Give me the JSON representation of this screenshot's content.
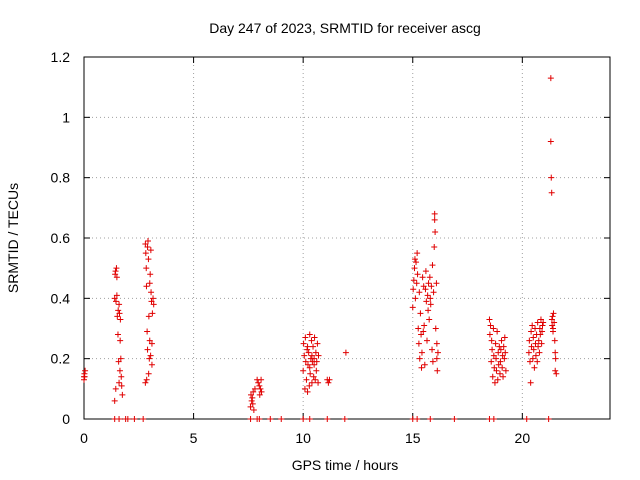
{
  "chart_data": {
    "type": "scatter",
    "title": "Day 247 of 2023, SRMTID for receiver ascg",
    "xlabel": "GPS time / hours",
    "ylabel": "SRMTID / TECUs",
    "xlim": [
      0,
      24
    ],
    "ylim": [
      0,
      1.2
    ],
    "xticks": [
      0,
      5,
      10,
      15,
      20
    ],
    "yticks": [
      0,
      0.2,
      0.4,
      0.6,
      0.8,
      1,
      1.2
    ],
    "ytick_labels": [
      "0",
      "0.2",
      "0.4",
      "0.6",
      "0.8",
      "1",
      "1.2"
    ],
    "grid": true,
    "marker": "+",
    "series": [
      {
        "name": "ascg",
        "color": "#e00000",
        "x": [
          0.0,
          0.0,
          0.02,
          0.03,
          0.05,
          1.4,
          1.4,
          1.42,
          1.44,
          1.45,
          1.46,
          1.48,
          1.5,
          1.5,
          1.52,
          1.55,
          1.56,
          1.58,
          1.6,
          1.6,
          1.62,
          1.64,
          1.65,
          1.66,
          1.68,
          1.7,
          1.72,
          1.75,
          2.8,
          2.8,
          2.82,
          2.84,
          2.85,
          2.86,
          2.88,
          2.9,
          2.9,
          2.92,
          2.94,
          2.95,
          2.96,
          2.98,
          3.0,
          3.0,
          3.02,
          3.04,
          3.05,
          3.06,
          3.08,
          3.1,
          3.1,
          3.12,
          3.15,
          3.18,
          7.6,
          7.62,
          7.65,
          7.68,
          7.7,
          7.72,
          7.75,
          7.8,
          7.9,
          7.95,
          8.0,
          8.02,
          8.05,
          8.08,
          8.1,
          10.0,
          10.02,
          10.05,
          10.08,
          10.1,
          10.12,
          10.15,
          10.18,
          10.2,
          10.2,
          10.22,
          10.25,
          10.28,
          10.3,
          10.3,
          10.32,
          10.35,
          10.38,
          10.4,
          10.4,
          10.42,
          10.45,
          10.48,
          10.5,
          10.5,
          10.52,
          10.55,
          10.58,
          10.6,
          10.62,
          10.65,
          10.68,
          10.7,
          11.1,
          11.15,
          11.2,
          11.95,
          15.0,
          15.02,
          15.05,
          15.08,
          15.1,
          15.12,
          15.15,
          15.18,
          15.2,
          15.22,
          15.25,
          15.28,
          15.3,
          15.32,
          15.35,
          15.38,
          15.4,
          15.42,
          15.45,
          15.48,
          15.5,
          15.52,
          15.55,
          15.58,
          15.6,
          15.62,
          15.65,
          15.68,
          15.7,
          15.72,
          15.75,
          15.78,
          15.8,
          15.82,
          15.85,
          15.88,
          15.9,
          15.92,
          15.95,
          15.98,
          16.0,
          16.0,
          16.02,
          16.05,
          16.08,
          16.1,
          16.1,
          16.12,
          16.15,
          18.5,
          18.52,
          18.55,
          18.58,
          18.6,
          18.62,
          18.65,
          18.68,
          18.7,
          18.72,
          18.75,
          18.78,
          18.8,
          18.82,
          18.85,
          18.88,
          18.9,
          18.92,
          18.95,
          18.98,
          19.0,
          19.02,
          19.05,
          19.08,
          19.1,
          19.12,
          19.15,
          19.18,
          19.2,
          19.22,
          19.25,
          20.3,
          20.32,
          20.35,
          20.38,
          20.4,
          20.42,
          20.45,
          20.48,
          20.5,
          20.52,
          20.55,
          20.58,
          20.6,
          20.62,
          20.65,
          20.68,
          20.7,
          20.72,
          20.75,
          20.78,
          20.8,
          20.82,
          20.85,
          20.88,
          20.9,
          20.92,
          20.95,
          21.3,
          21.3,
          21.32,
          21.34,
          21.35,
          21.36,
          21.38,
          21.4,
          21.4,
          21.42,
          21.45,
          21.48,
          21.5,
          21.5,
          21.52,
          21.55,
          1.4,
          1.6,
          1.9,
          2.0,
          2.3,
          2.7,
          7.6,
          7.9,
          8.0,
          8.5,
          9.0,
          10.0,
          10.3,
          11.1,
          11.9,
          15.0,
          15.2,
          15.8,
          16.9,
          18.5,
          18.7,
          20.2,
          21.2
        ],
        "y": [
          0.13,
          0.14,
          0.15,
          0.14,
          0.16,
          0.06,
          0.4,
          0.48,
          0.49,
          0.1,
          0.39,
          0.5,
          0.47,
          0.41,
          0.34,
          0.28,
          0.36,
          0.19,
          0.12,
          0.38,
          0.35,
          0.16,
          0.26,
          0.33,
          0.2,
          0.14,
          0.11,
          0.08,
          0.12,
          0.58,
          0.55,
          0.5,
          0.44,
          0.13,
          0.29,
          0.57,
          0.23,
          0.59,
          0.53,
          0.15,
          0.34,
          0.2,
          0.45,
          0.26,
          0.48,
          0.21,
          0.56,
          0.42,
          0.39,
          0.25,
          0.18,
          0.35,
          0.4,
          0.38,
          0.04,
          0.08,
          0.06,
          0.07,
          0.05,
          0.09,
          0.03,
          0.1,
          0.13,
          0.12,
          0.11,
          0.08,
          0.1,
          0.13,
          0.09,
          0.16,
          0.25,
          0.21,
          0.1,
          0.27,
          0.19,
          0.13,
          0.23,
          0.09,
          0.24,
          0.18,
          0.22,
          0.11,
          0.28,
          0.17,
          0.15,
          0.2,
          0.26,
          0.21,
          0.12,
          0.19,
          0.24,
          0.14,
          0.18,
          0.2,
          0.27,
          0.13,
          0.22,
          0.16,
          0.19,
          0.25,
          0.12,
          0.21,
          0.13,
          0.12,
          0.13,
          0.22,
          0.37,
          0.43,
          0.46,
          0.5,
          0.53,
          0.4,
          0.52,
          0.45,
          0.55,
          0.48,
          0.3,
          0.25,
          0.42,
          0.2,
          0.35,
          0.28,
          0.17,
          0.22,
          0.47,
          0.29,
          0.44,
          0.31,
          0.18,
          0.43,
          0.49,
          0.39,
          0.26,
          0.41,
          0.36,
          0.45,
          0.33,
          0.47,
          0.4,
          0.38,
          0.44,
          0.23,
          0.51,
          0.19,
          0.42,
          0.57,
          0.66,
          0.68,
          0.62,
          0.3,
          0.45,
          0.25,
          0.2,
          0.16,
          0.22,
          0.33,
          0.28,
          0.31,
          0.19,
          0.26,
          0.23,
          0.14,
          0.3,
          0.21,
          0.17,
          0.12,
          0.25,
          0.2,
          0.16,
          0.29,
          0.13,
          0.22,
          0.18,
          0.24,
          0.15,
          0.19,
          0.23,
          0.26,
          0.17,
          0.21,
          0.14,
          0.24,
          0.2,
          0.27,
          0.22,
          0.16,
          0.22,
          0.26,
          0.19,
          0.12,
          0.29,
          0.24,
          0.31,
          0.2,
          0.27,
          0.23,
          0.17,
          0.3,
          0.25,
          0.21,
          0.28,
          0.19,
          0.32,
          0.24,
          0.26,
          0.22,
          0.3,
          0.28,
          0.33,
          0.25,
          0.29,
          0.31,
          0.32,
          1.13,
          0.92,
          0.8,
          0.75,
          0.33,
          0.31,
          0.34,
          0.3,
          0.29,
          0.35,
          0.32,
          0.26,
          0.22,
          0.16,
          0.2,
          0.15,
          0,
          0,
          0,
          0,
          0,
          0,
          0,
          0,
          0,
          0,
          0,
          0,
          0,
          0,
          0,
          0,
          0,
          0,
          0,
          0,
          0,
          0,
          0
        ]
      }
    ]
  }
}
